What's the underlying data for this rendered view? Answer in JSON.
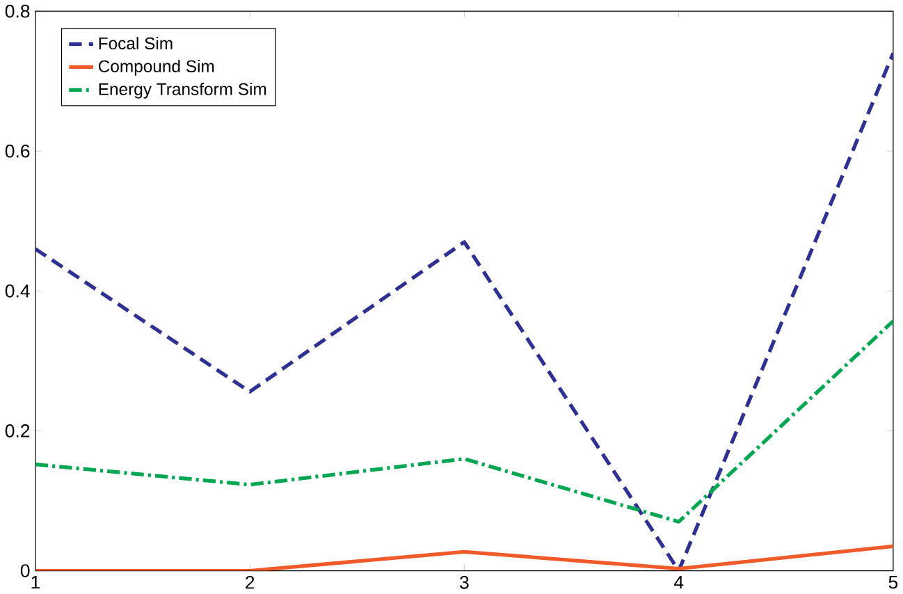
{
  "chart_data": {
    "type": "line",
    "x": [
      1,
      2,
      3,
      4,
      5
    ],
    "series": [
      {
        "name": "Focal Sim",
        "color": "#2e3192",
        "line_style": "dashed",
        "values": [
          0.46,
          0.256,
          0.47,
          0.0,
          0.74
        ]
      },
      {
        "name": "Compound Sim",
        "color": "#f15a29",
        "line_style": "solid",
        "values": [
          0.0,
          0.0,
          0.027,
          0.003,
          0.035
        ]
      },
      {
        "name": "Energy Transform Sim",
        "color": "#00a651",
        "line_style": "dashdot",
        "values": [
          0.152,
          0.123,
          0.16,
          0.07,
          0.357
        ]
      }
    ],
    "xlim": [
      1,
      5
    ],
    "xticks": [
      1,
      2,
      3,
      4,
      5
    ],
    "ylim": [
      0,
      0.8
    ],
    "yticks": [
      0,
      0.2,
      0.4,
      0.6,
      0.8
    ],
    "grid": false,
    "legend": "top left",
    "marker": "none"
  }
}
